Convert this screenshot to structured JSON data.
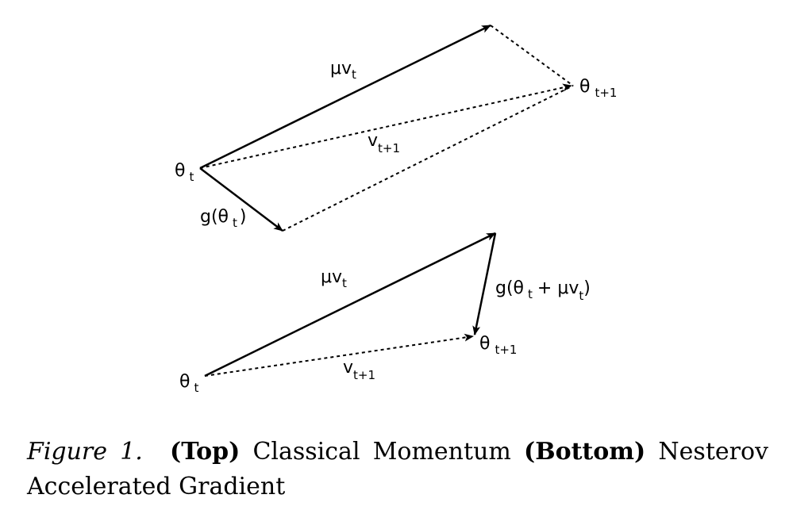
{
  "diagram": {
    "top": {
      "labels": {
        "theta_t": {
          "base": "θ",
          "sub": "t"
        },
        "mu_v_t": {
          "base": "μv",
          "sub": "t"
        },
        "theta_t1": {
          "base": "θ",
          "sub": "t+1"
        },
        "v_t1": {
          "base": "v",
          "sub": "t+1"
        },
        "g_theta": {
          "pre": "g(θ",
          "sub": "t",
          "post": ")"
        }
      }
    },
    "bottom": {
      "labels": {
        "mu_v_t": {
          "base": "μv",
          "sub": "t"
        },
        "g_theta_mu": {
          "pre": "g(θ",
          "sub1": "t",
          "mid": "+ μv",
          "sub2": "t",
          "post": ")"
        },
        "theta_t1": {
          "base": "θ",
          "sub": "t+1"
        },
        "theta_t": {
          "base": "θ",
          "sub": "t"
        },
        "v_t1": {
          "base": "v",
          "sub": "t+1"
        }
      }
    }
  },
  "caption": {
    "figure_label": "Figure 1.",
    "top_bold": "(Top)",
    "top_text": "Classical Momentum",
    "bottom_bold": "(Bottom)",
    "bottom_text": "Nesterov Accelerated Gradient"
  }
}
